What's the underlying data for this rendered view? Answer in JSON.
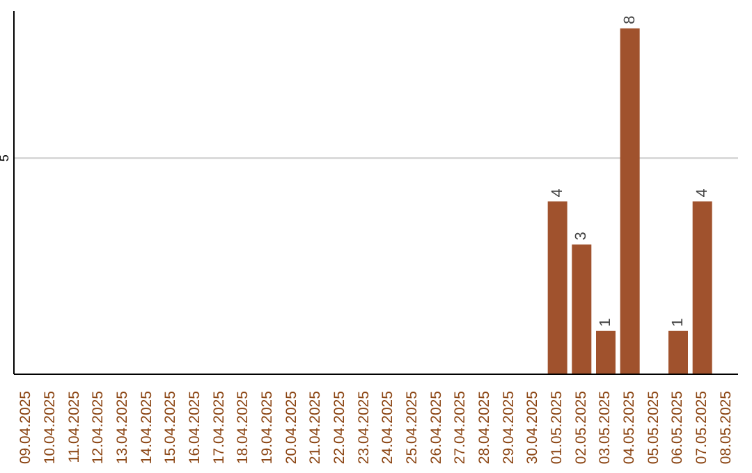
{
  "chart_data": {
    "type": "bar",
    "categories": [
      "09.04.2025",
      "10.04.2025",
      "11.04.2025",
      "12.04.2025",
      "13.04.2025",
      "14.04.2025",
      "15.04.2025",
      "16.04.2025",
      "17.04.2025",
      "18.04.2025",
      "19.04.2025",
      "20.04.2025",
      "21.04.2025",
      "22.04.2025",
      "23.04.2025",
      "24.04.2025",
      "25.04.2025",
      "26.04.2025",
      "27.04.2025",
      "28.04.2025",
      "29.04.2025",
      "30.04.2025",
      "01.05.2025",
      "02.05.2025",
      "03.05.2025",
      "04.05.2025",
      "05.05.2025",
      "06.05.2025",
      "07.05.2025",
      "08.05.2025"
    ],
    "values": [
      null,
      null,
      null,
      null,
      null,
      null,
      null,
      null,
      null,
      null,
      null,
      null,
      null,
      null,
      null,
      null,
      null,
      null,
      null,
      null,
      null,
      null,
      4,
      3,
      1,
      8,
      null,
      1,
      4,
      null
    ],
    "value_labels": [
      null,
      null,
      null,
      null,
      null,
      null,
      null,
      null,
      null,
      null,
      null,
      null,
      null,
      null,
      null,
      null,
      null,
      null,
      null,
      null,
      null,
      null,
      "4",
      "3",
      "1",
      "8",
      null,
      "1",
      "4",
      null
    ],
    "color": "#a0522d",
    "ylim": [
      0,
      8.4
    ],
    "yticks": [
      5
    ],
    "grid": "y"
  }
}
